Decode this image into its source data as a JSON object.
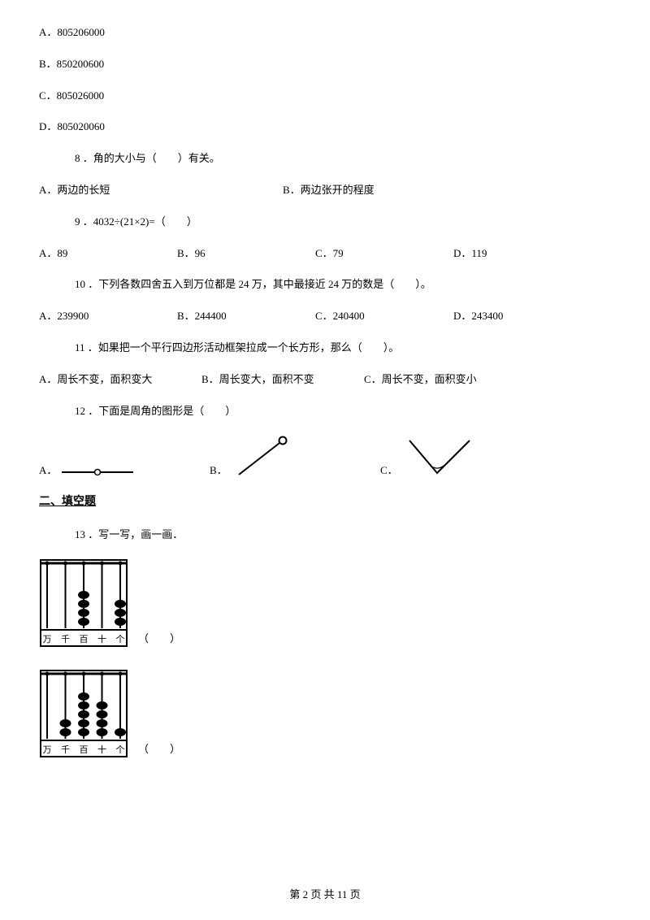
{
  "q7": {
    "a": "A．805206000",
    "b": "B．850200600",
    "c": "C．805026000",
    "d": "D．805020060"
  },
  "q8": {
    "stem": "8 ．角的大小与（　　）有关。",
    "a": "A．两边的长短",
    "b": "B．两边张开的程度"
  },
  "q9": {
    "stem": "9 ．4032÷(21×2)=（　　）",
    "a": "A．89",
    "b": "B．96",
    "c": "C．79",
    "d": "D．119"
  },
  "q10": {
    "stem": "10 ．下列各数四舍五入到万位都是 24 万，其中最接近 24 万的数是（　　）。",
    "a": "A．239900",
    "b": "B．244400",
    "c": "C．240400",
    "d": "D．243400"
  },
  "q11": {
    "stem": "11 ．如果把一个平行四边形活动框架拉成一个长方形，那么（　　）。",
    "a": "A．周长不变，面积变大",
    "b": "B．周长变大，面积不变",
    "c": "C．周长不变，面积变小"
  },
  "q12": {
    "stem": "12 ．下面是周角的图形是（　　）",
    "a": "A．",
    "b": "B．",
    "c": "C．",
    "opt_a": {
      "stroke": "#000000",
      "stroke_width": 2,
      "dot_fill": "#ffffff"
    },
    "opt_b": {
      "stroke": "#000000",
      "stroke_width": 2,
      "dot_fill": "#ffffff"
    },
    "opt_c": {
      "stroke": "#000000",
      "stroke_width": 2
    }
  },
  "section2": "二、填空题",
  "q13": {
    "stem": "13 ．写一写，画一画．",
    "blank": "（　　）",
    "abacus1": {
      "labels": [
        "万",
        "千",
        "百",
        "十",
        "个"
      ],
      "beads": [
        0,
        0,
        4,
        0,
        3
      ],
      "frame_color": "#000000",
      "bead_color": "#000000",
      "bg": "#ffffff"
    },
    "abacus2": {
      "labels": [
        "万",
        "千",
        "百",
        "十",
        "个"
      ],
      "beads": [
        0,
        2,
        5,
        4,
        1
      ],
      "frame_color": "#000000",
      "bead_color": "#000000",
      "bg": "#ffffff"
    }
  },
  "footer": "第 2 页 共 11 页"
}
